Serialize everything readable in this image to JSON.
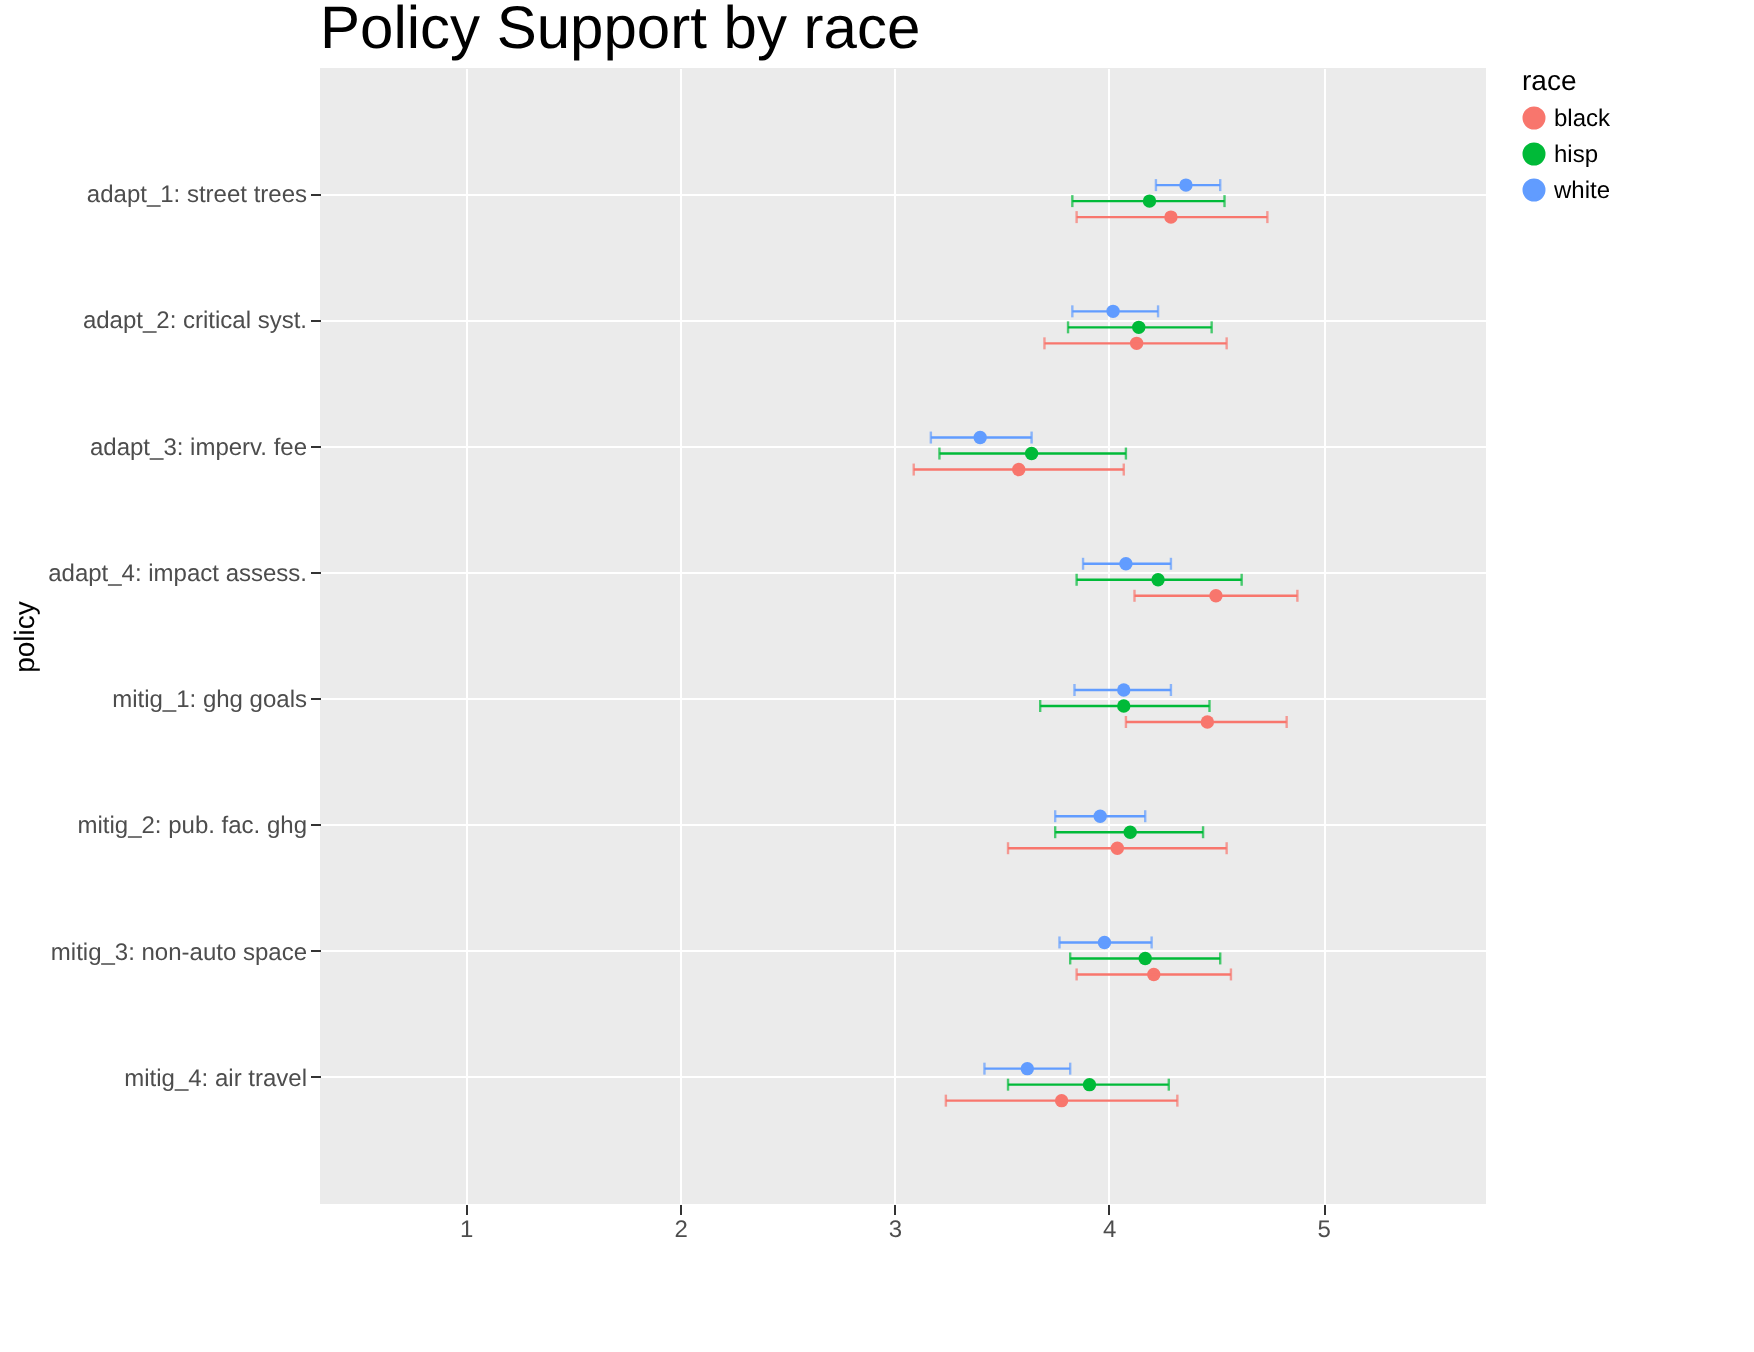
{
  "chart_data": {
    "type": "scatter",
    "orientation": "horizontal",
    "title": "Policy Support by race",
    "ylabel": "policy",
    "legend_title": "race",
    "legend": "right",
    "grid": true,
    "marker": "circle",
    "categories": [
      "adapt_1: street trees",
      "adapt_2: critical syst.",
      "adapt_3: imperv. fee",
      "adapt_4: impact assess.",
      "mitig_1: ghg goals",
      "mitig_2: pub. fac. ghg",
      "mitig_3: non-auto space",
      "mitig_4: air travel"
    ],
    "xlim": [
      0.32,
      5.76
    ],
    "xticks": [
      1,
      2,
      3,
      4,
      5
    ],
    "series": [
      {
        "name": "black",
        "color": "#f8766d",
        "values": [
          4.29,
          4.13,
          3.58,
          4.5,
          4.46,
          4.04,
          4.21,
          3.78
        ],
        "errors": [
          [
            3.85,
            4.74
          ],
          [
            3.7,
            4.55
          ],
          [
            3.09,
            4.07
          ],
          [
            4.12,
            4.88
          ],
          [
            4.08,
            4.83
          ],
          [
            3.53,
            4.55
          ],
          [
            3.85,
            4.57
          ],
          [
            3.24,
            4.32
          ]
        ]
      },
      {
        "name": "hisp",
        "color": "#00ba38",
        "values": [
          4.19,
          4.14,
          3.64,
          4.23,
          4.07,
          4.1,
          4.17,
          3.91
        ],
        "errors": [
          [
            3.83,
            4.54
          ],
          [
            3.81,
            4.48
          ],
          [
            3.21,
            4.08
          ],
          [
            3.85,
            4.62
          ],
          [
            3.68,
            4.47
          ],
          [
            3.75,
            4.44
          ],
          [
            3.82,
            4.52
          ],
          [
            3.53,
            4.28
          ]
        ]
      },
      {
        "name": "white",
        "color": "#619cff",
        "values": [
          4.36,
          4.02,
          3.4,
          4.08,
          4.07,
          3.96,
          3.98,
          3.62
        ],
        "errors": [
          [
            4.22,
            4.52
          ],
          [
            3.83,
            4.23
          ],
          [
            3.17,
            3.64
          ],
          [
            3.88,
            4.29
          ],
          [
            3.84,
            4.29
          ],
          [
            3.75,
            4.17
          ],
          [
            3.77,
            4.2
          ],
          [
            3.42,
            3.82
          ]
        ]
      }
    ]
  }
}
